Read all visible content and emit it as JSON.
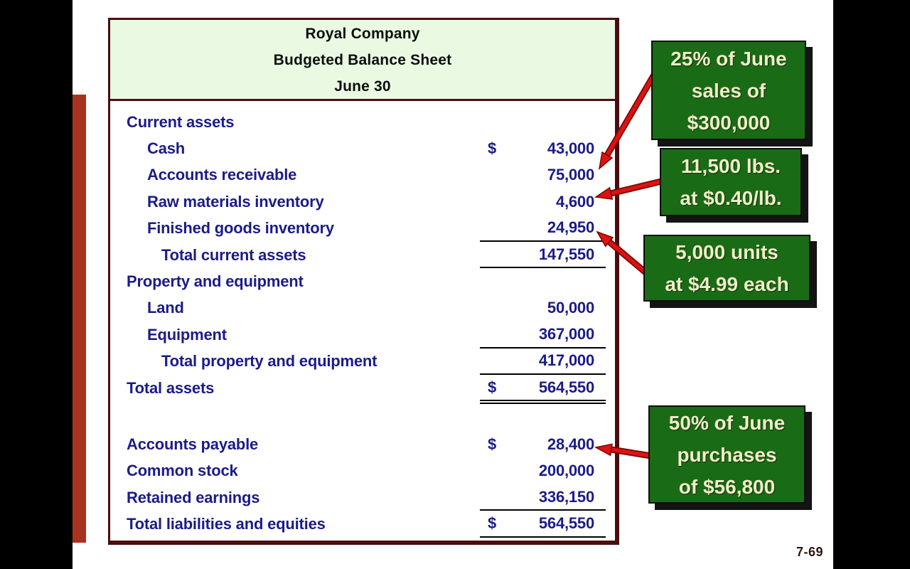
{
  "page_number": "7-69",
  "colors": {
    "table_border": "#4a0e0e",
    "header_green": "#e9f9e2",
    "text_navy": "#1b1b8a",
    "box_green": "#1a6b15",
    "box_text": "#f0eec8",
    "arrow_red": "#dd1212",
    "arrow_edge": "#7a0505",
    "red_bar": "#a8321e",
    "page_num": "#2b1515"
  },
  "table": {
    "title_lines": [
      "Royal Company",
      "Budgeted Balance Sheet",
      "June 30"
    ],
    "rows": [
      {
        "label": "Current assets",
        "indent": 0,
        "dollar": "",
        "value": "",
        "underline": "none"
      },
      {
        "label": "Cash",
        "indent": 1,
        "dollar": "$",
        "value": "43,000",
        "underline": "none"
      },
      {
        "label": "Accounts receivable",
        "indent": 1,
        "dollar": "",
        "value": "75,000",
        "underline": "none"
      },
      {
        "label": "Raw materials inventory",
        "indent": 1,
        "dollar": "",
        "value": "4,600",
        "underline": "none"
      },
      {
        "label": "Finished goods inventory",
        "indent": 1,
        "dollar": "",
        "value": "24,950",
        "underline": "single"
      },
      {
        "label": "Total current assets",
        "indent": 2,
        "dollar": "",
        "value": "147,550",
        "underline": "single"
      },
      {
        "label": "Property and equipment",
        "indent": 0,
        "dollar": "",
        "value": "",
        "underline": "none"
      },
      {
        "label": "Land",
        "indent": 1,
        "dollar": "",
        "value": "50,000",
        "underline": "none"
      },
      {
        "label": "Equipment",
        "indent": 1,
        "dollar": "",
        "value": "367,000",
        "underline": "single"
      },
      {
        "label": "Total property and equipment",
        "indent": 2,
        "dollar": "",
        "value": "417,000",
        "underline": "single"
      },
      {
        "label": "Total assets",
        "indent": 0,
        "dollar": "$",
        "value": "564,550",
        "underline": "double"
      },
      {
        "label": "",
        "indent": 0,
        "dollar": "",
        "value": "",
        "underline": "none",
        "blank": true
      },
      {
        "label": "Accounts payable",
        "indent": 0,
        "dollar": "$",
        "value": "28,400",
        "underline": "none"
      },
      {
        "label": "Common stock",
        "indent": 0,
        "dollar": "",
        "value": "200,000",
        "underline": "none"
      },
      {
        "label": "Retained earnings",
        "indent": 0,
        "dollar": "",
        "value": "336,150",
        "underline": "single"
      },
      {
        "label": "Total liabilities and equities",
        "indent": 0,
        "dollar": "$",
        "value": "564,550",
        "underline": "single"
      }
    ]
  },
  "callouts": [
    {
      "lines": [
        "25% of June",
        "sales of",
        "$300,000"
      ],
      "points_to": "Accounts receivable 75,000"
    },
    {
      "lines": [
        "11,500 lbs.",
        "at $0.40/lb."
      ],
      "points_to": "Raw materials inventory 4,600"
    },
    {
      "lines": [
        "5,000 units",
        "at $4.99 each"
      ],
      "points_to": "Finished goods inventory 24,950"
    },
    {
      "lines": [
        "50% of June",
        "purchases",
        "of $56,800"
      ],
      "points_to": "Accounts payable 28,400"
    }
  ]
}
